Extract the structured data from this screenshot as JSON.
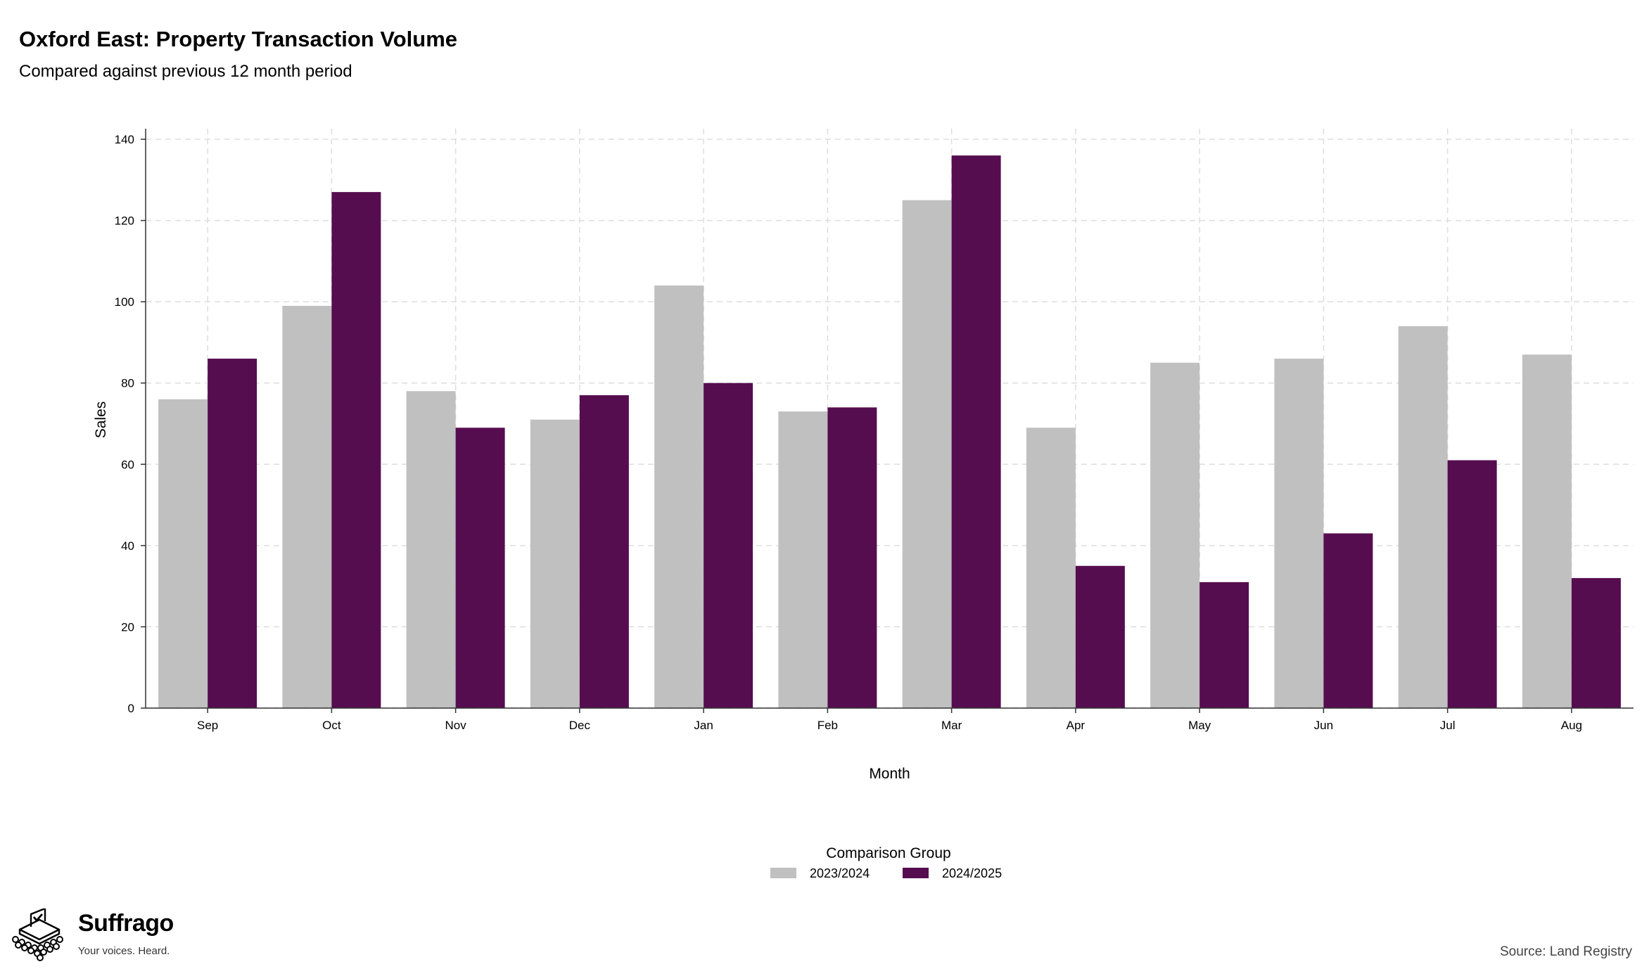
{
  "header": {
    "title": "Oxford East: Property Transaction Volume",
    "subtitle": "Compared against previous 12 month period"
  },
  "footer": {
    "brand_name": "Suffrago",
    "brand_tagline": "Your voices. Heard.",
    "source": "Source: Land Registry"
  },
  "colors": {
    "series_2023": "#c0c0c0",
    "series_2024": "#560d50",
    "grid": "#dddddd"
  },
  "chart_data": {
    "type": "bar",
    "title": "Oxford East: Property Transaction Volume",
    "subtitle": "Compared against previous 12 month period",
    "xlabel": "Month",
    "ylabel": "Sales",
    "ylim": [
      0,
      140
    ],
    "yticks": [
      0,
      20,
      40,
      60,
      80,
      100,
      120,
      140
    ],
    "grid": true,
    "legend": {
      "title": "Comparison Group",
      "position": "bottom"
    },
    "categories": [
      "Sep",
      "Oct",
      "Nov",
      "Dec",
      "Jan",
      "Feb",
      "Mar",
      "Apr",
      "May",
      "Jun",
      "Jul",
      "Aug"
    ],
    "series": [
      {
        "name": "2023/2024",
        "color": "#c0c0c0",
        "values": [
          76,
          99,
          78,
          71,
          104,
          73,
          125,
          69,
          85,
          86,
          94,
          87
        ]
      },
      {
        "name": "2024/2025",
        "color": "#560d50",
        "values": [
          86,
          127,
          69,
          77,
          80,
          74,
          136,
          35,
          31,
          43,
          61,
          32
        ]
      }
    ]
  }
}
